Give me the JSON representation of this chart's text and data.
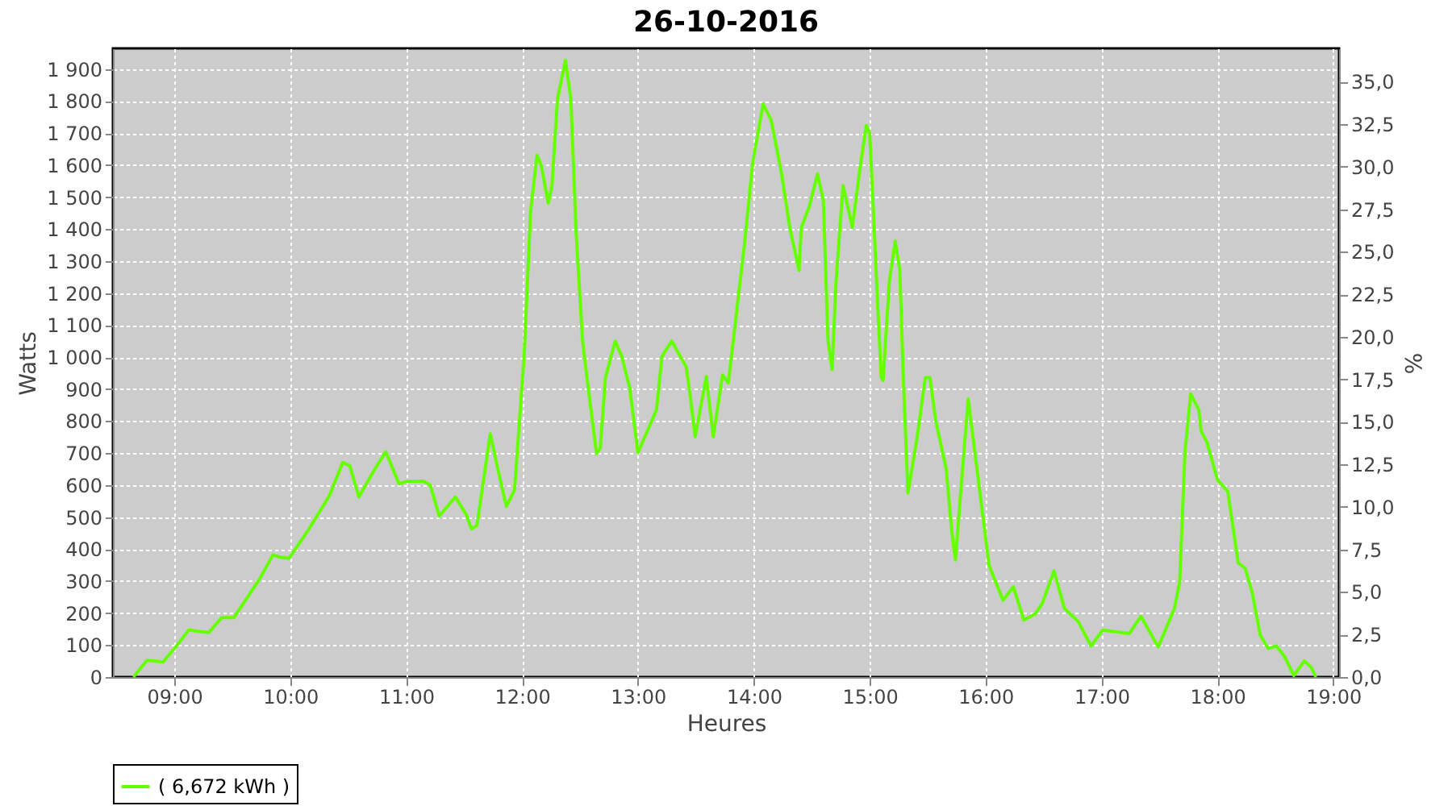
{
  "chart_data": {
    "type": "line",
    "title": "26-10-2016",
    "xlabel": "Heures",
    "ylabel": "Watts",
    "y2label": "%",
    "xlim": [
      8.47,
      19.05
    ],
    "xticks": [
      {
        "value": 9,
        "label": "09:00"
      },
      {
        "value": 10,
        "label": "10:00"
      },
      {
        "value": 11,
        "label": "11:00"
      },
      {
        "value": 12,
        "label": "12:00"
      },
      {
        "value": 13,
        "label": "13:00"
      },
      {
        "value": 14,
        "label": "14:00"
      },
      {
        "value": 15,
        "label": "15:00"
      },
      {
        "value": 16,
        "label": "16:00"
      },
      {
        "value": 17,
        "label": "17:00"
      },
      {
        "value": 18,
        "label": "18:00"
      },
      {
        "value": 19,
        "label": "19:00"
      }
    ],
    "ylim": [
      0,
      1965
    ],
    "yticks": [
      0,
      100,
      200,
      300,
      400,
      500,
      600,
      700,
      800,
      900,
      {
        "value": 1000,
        "label": "1 000"
      },
      {
        "value": 1100,
        "label": "1 100"
      },
      {
        "value": 1200,
        "label": "1 200"
      },
      {
        "value": 1300,
        "label": "1 300"
      },
      {
        "value": 1400,
        "label": "1 400"
      },
      {
        "value": 1500,
        "label": "1 500"
      },
      {
        "value": 1600,
        "label": "1 600"
      },
      {
        "value": 1700,
        "label": "1 700"
      },
      {
        "value": 1800,
        "label": "1 800"
      },
      {
        "value": 1900,
        "label": "1 900"
      }
    ],
    "y2lim": [
      0,
      36.96
    ],
    "y2ticks": [
      {
        "value": 0,
        "label": "0,0"
      },
      {
        "value": 2.5,
        "label": "2,5"
      },
      {
        "value": 5,
        "label": "5,0"
      },
      {
        "value": 7.5,
        "label": "7,5"
      },
      {
        "value": 10,
        "label": "10,0"
      },
      {
        "value": 12.5,
        "label": "12,5"
      },
      {
        "value": 15,
        "label": "15,0"
      },
      {
        "value": 17.5,
        "label": "17,5"
      },
      {
        "value": 20,
        "label": "20,0"
      },
      {
        "value": 22.5,
        "label": "22,5"
      },
      {
        "value": 25,
        "label": "25,0"
      },
      {
        "value": 27.5,
        "label": "27,5"
      },
      {
        "value": 30,
        "label": "30,0"
      },
      {
        "value": 32.5,
        "label": "32,5"
      },
      {
        "value": 35,
        "label": "35,0"
      }
    ],
    "grid": true,
    "legend": "bottom",
    "marker": "none",
    "line_style": "solid",
    "series": [
      {
        "name": "( 6,672 kWh )",
        "color": "#66ff00",
        "x": [
          8.647,
          8.764,
          8.903,
          9.018,
          9.125,
          9.296,
          9.41,
          9.514,
          9.643,
          9.736,
          9.851,
          9.92,
          9.99,
          10.153,
          10.338,
          10.453,
          10.514,
          10.592,
          10.73,
          10.824,
          10.939,
          11.008,
          11.147,
          11.208,
          11.286,
          11.425,
          11.518,
          11.564,
          11.611,
          11.726,
          11.796,
          11.865,
          11.935,
          12.018,
          12.074,
          12.129,
          12.167,
          12.226,
          12.258,
          12.306,
          12.375,
          12.421,
          12.467,
          12.522,
          12.56,
          12.643,
          12.675,
          12.72,
          12.804,
          12.86,
          12.93,
          13.0,
          13.16,
          13.208,
          13.292,
          13.417,
          13.449,
          13.494,
          13.59,
          13.65,
          13.73,
          13.78,
          13.85,
          13.92,
          13.99,
          14.08,
          14.15,
          14.24,
          14.31,
          14.39,
          14.41,
          14.48,
          14.55,
          14.6,
          14.64,
          14.675,
          14.71,
          14.77,
          14.85,
          14.91,
          14.97,
          15.0,
          15.03,
          15.07,
          15.1,
          15.115,
          15.17,
          15.22,
          15.26,
          15.29,
          15.33,
          15.41,
          15.48,
          15.52,
          15.57,
          15.66,
          15.71,
          15.74,
          15.79,
          15.85,
          15.92,
          16.03,
          16.15,
          16.24,
          16.33,
          16.43,
          16.49,
          16.59,
          16.68,
          16.8,
          16.91,
          17.01,
          17.24,
          17.34,
          17.49,
          17.63,
          17.675,
          17.72,
          17.77,
          17.84,
          17.86,
          17.91,
          18.0,
          18.09,
          18.18,
          18.24,
          18.3,
          18.37,
          18.44,
          18.51,
          18.58,
          18.66,
          18.75,
          18.81,
          18.85
        ],
        "values": [
          0,
          52,
          47,
          97,
          147,
          139,
          186,
          186,
          256,
          307,
          382,
          374,
          371,
          458,
          567,
          671,
          660,
          563,
          650,
          704,
          604,
          612,
          612,
          600,
          503,
          563,
          508,
          463,
          474,
          760,
          642,
          533,
          584,
          1003,
          1455,
          1631,
          1598,
          1481,
          1535,
          1807,
          1928,
          1807,
          1388,
          1053,
          936,
          698,
          715,
          936,
          1050,
          1003,
          902,
          701,
          835,
          1003,
          1050,
          969,
          885,
          751,
          939,
          751,
          944,
          919,
          1137,
          1355,
          1606,
          1791,
          1740,
          1573,
          1405,
          1271,
          1405,
          1472,
          1573,
          1489,
          1053,
          961,
          1237,
          1536,
          1405,
          1573,
          1724,
          1699,
          1472,
          1153,
          936,
          927,
          1237,
          1363,
          1271,
          936,
          575,
          751,
          936,
          936,
          801,
          650,
          449,
          366,
          600,
          869,
          667,
          349,
          240,
          282,
          178,
          198,
          231,
          332,
          215,
          173,
          97,
          147,
          136,
          190,
          94,
          215,
          298,
          701,
          885,
          835,
          768,
          734,
          617,
          580,
          357,
          340,
          265,
          131,
          89,
          97,
          64,
          5,
          50,
          30,
          0
        ]
      }
    ]
  }
}
